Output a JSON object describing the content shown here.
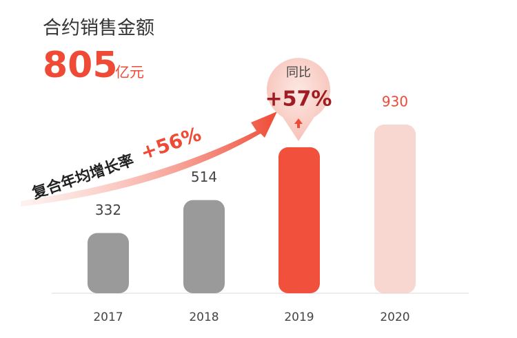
{
  "chart_data": {
    "type": "bar",
    "title": "合约销售金额",
    "unit": "亿元",
    "categories": [
      "2017",
      "2018",
      "2019",
      "2020"
    ],
    "values": [
      332,
      514,
      805,
      930
    ],
    "value_labels": [
      "332",
      "514",
      null,
      "930"
    ],
    "colors": [
      "#9a9a9a",
      "#9a9a9a",
      "#f0503c",
      "#f6c9c0"
    ],
    "annotations": {
      "cagr_label": "复合年均增长率",
      "cagr": "+56%",
      "yoy_label": "同比",
      "yoy": "+57%"
    }
  }
}
